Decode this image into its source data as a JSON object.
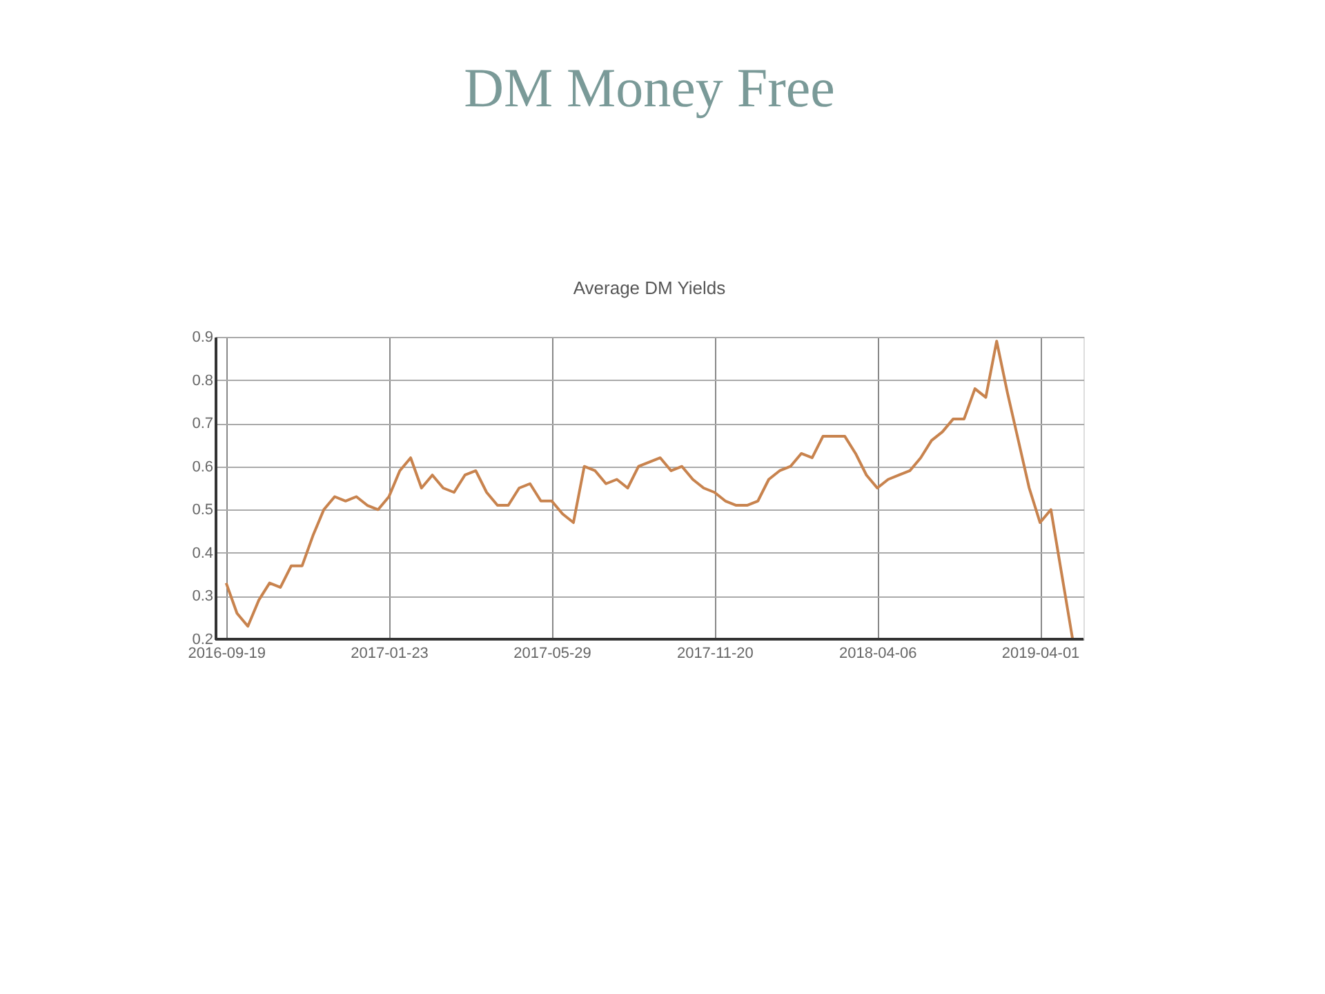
{
  "chart_data": {
    "type": "line",
    "title": "DM Money Free",
    "subtitle": "Average DM Yields",
    "categories": [
      "2016-09-19",
      null,
      null,
      null,
      null,
      null,
      null,
      null,
      null,
      null,
      null,
      null,
      null,
      null,
      null,
      "2017-01-23",
      null,
      null,
      null,
      null,
      null,
      null,
      null,
      null,
      null,
      null,
      null,
      null,
      null,
      null,
      "2017-05-29",
      null,
      null,
      null,
      null,
      null,
      null,
      null,
      null,
      null,
      null,
      null,
      null,
      null,
      null,
      "2017-11-20",
      null,
      null,
      null,
      null,
      null,
      null,
      null,
      null,
      null,
      null,
      null,
      null,
      null,
      null,
      "2018-04-06",
      null,
      null,
      null,
      null,
      null,
      null,
      null,
      null,
      null,
      null,
      null,
      null,
      null,
      null,
      "2019-04-01",
      null,
      null,
      null
    ],
    "series": [
      {
        "color": "#c8834e",
        "values": [
          0.33,
          0.26,
          0.23,
          0.29,
          0.33,
          0.32,
          0.37,
          0.37,
          0.44,
          0.5,
          0.53,
          0.52,
          0.53,
          0.51,
          0.5,
          0.53,
          0.59,
          0.62,
          0.55,
          0.58,
          0.55,
          0.54,
          0.58,
          0.59,
          0.54,
          0.51,
          0.51,
          0.55,
          0.56,
          0.52,
          0.52,
          0.49,
          0.47,
          0.6,
          0.59,
          0.56,
          0.57,
          0.55,
          0.6,
          0.61,
          0.62,
          0.59,
          0.6,
          0.57,
          0.55,
          0.54,
          0.52,
          0.51,
          0.51,
          0.52,
          0.57,
          0.59,
          0.6,
          0.63,
          0.62,
          0.67,
          0.67,
          0.67,
          0.63,
          0.58,
          0.55,
          0.57,
          0.58,
          0.59,
          0.62,
          0.66,
          0.68,
          0.71,
          0.71,
          0.78,
          0.76,
          0.89,
          0.77,
          0.66,
          0.55,
          0.47,
          0.5,
          0.35,
          0.2
        ]
      }
    ],
    "ylim": [
      0.2,
      0.9
    ],
    "yticks": [
      0.2,
      0.3,
      0.4,
      0.5,
      0.6,
      0.7,
      0.8,
      0.9
    ],
    "grid": true
  }
}
